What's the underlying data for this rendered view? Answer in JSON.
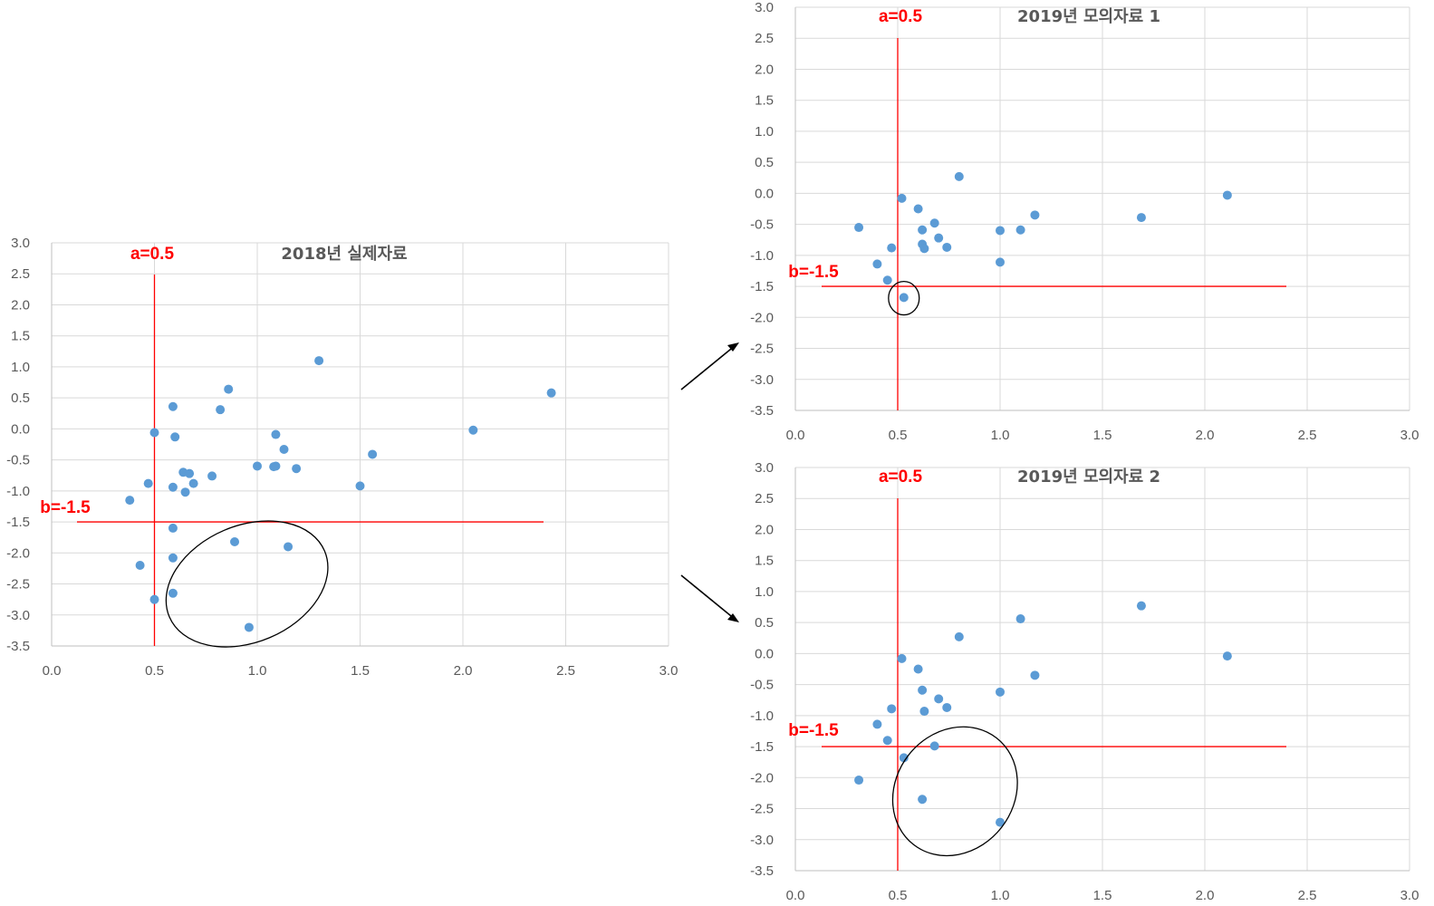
{
  "chart_data": [
    {
      "type": "scatter",
      "title": "2018년 실제자료",
      "xlim": [
        0.0,
        3.0
      ],
      "ylim": [
        -3.5,
        3.0
      ],
      "x_ticks": [
        "0.0",
        "0.5",
        "1.0",
        "1.5",
        "2.0",
        "2.5",
        "3.0"
      ],
      "y_ticks": [
        "3.0",
        "2.5",
        "2.0",
        "1.5",
        "1.0",
        "0.5",
        "0.0",
        "-0.5",
        "-1.0",
        "-1.5",
        "-2.0",
        "-2.5",
        "-3.0",
        "-3.5"
      ],
      "grid": true,
      "reference_lines": [
        {
          "orientation": "vertical",
          "value": 0.5,
          "label": "a=0.5"
        },
        {
          "orientation": "horizontal",
          "value": -1.5,
          "label": "b=-1.5"
        }
      ],
      "points": [
        {
          "x": 0.38,
          "y": -1.15
        },
        {
          "x": 0.43,
          "y": -2.2
        },
        {
          "x": 0.47,
          "y": -0.88
        },
        {
          "x": 0.5,
          "y": -0.06
        },
        {
          "x": 0.5,
          "y": -2.75
        },
        {
          "x": 0.59,
          "y": 0.36
        },
        {
          "x": 0.59,
          "y": -0.94
        },
        {
          "x": 0.59,
          "y": -1.6
        },
        {
          "x": 0.59,
          "y": -2.08
        },
        {
          "x": 0.59,
          "y": -2.65
        },
        {
          "x": 0.6,
          "y": -0.13
        },
        {
          "x": 0.64,
          "y": -0.7
        },
        {
          "x": 0.65,
          "y": -1.02
        },
        {
          "x": 0.67,
          "y": -0.72
        },
        {
          "x": 0.69,
          "y": -0.88
        },
        {
          "x": 0.78,
          "y": -0.76
        },
        {
          "x": 0.82,
          "y": 0.31
        },
        {
          "x": 0.86,
          "y": 0.64
        },
        {
          "x": 0.89,
          "y": -1.82
        },
        {
          "x": 0.96,
          "y": -3.2
        },
        {
          "x": 1.0,
          "y": -0.6
        },
        {
          "x": 1.08,
          "y": -0.61
        },
        {
          "x": 1.09,
          "y": -0.09
        },
        {
          "x": 1.09,
          "y": -0.6
        },
        {
          "x": 1.13,
          "y": -0.33
        },
        {
          "x": 1.15,
          "y": -1.9
        },
        {
          "x": 1.19,
          "y": -0.64
        },
        {
          "x": 1.3,
          "y": 1.1
        },
        {
          "x": 1.5,
          "y": -0.92
        },
        {
          "x": 1.56,
          "y": -0.41
        },
        {
          "x": 2.05,
          "y": -0.02
        },
        {
          "x": 2.43,
          "y": 0.58
        }
      ],
      "highlight_ellipse": {
        "cx": 0.95,
        "cy": -2.5,
        "rx": 0.41,
        "ry": 0.94,
        "rotation": -23
      }
    },
    {
      "type": "scatter",
      "title": "2019년 모의자료 1",
      "xlim": [
        0.0,
        3.0
      ],
      "ylim": [
        -3.5,
        3.0
      ],
      "x_ticks": [
        "0.0",
        "0.5",
        "1.0",
        "1.5",
        "2.0",
        "2.5",
        "3.0"
      ],
      "y_ticks": [
        "3.0",
        "2.5",
        "2.0",
        "1.5",
        "1.0",
        "0.5",
        "0.0",
        "-0.5",
        "-1.0",
        "-1.5",
        "-2.0",
        "-2.5",
        "-3.0",
        "-3.5"
      ],
      "grid": true,
      "reference_lines": [
        {
          "orientation": "vertical",
          "value": 0.5,
          "label": "a=0.5"
        },
        {
          "orientation": "horizontal",
          "value": -1.5,
          "label": "b=-1.5"
        }
      ],
      "points": [
        {
          "x": 0.31,
          "y": -0.55
        },
        {
          "x": 0.4,
          "y": -1.14
        },
        {
          "x": 0.45,
          "y": -1.4
        },
        {
          "x": 0.47,
          "y": -0.88
        },
        {
          "x": 0.52,
          "y": -0.08
        },
        {
          "x": 0.53,
          "y": -1.68
        },
        {
          "x": 0.6,
          "y": -0.25
        },
        {
          "x": 0.62,
          "y": -0.59
        },
        {
          "x": 0.62,
          "y": -0.82
        },
        {
          "x": 0.63,
          "y": -0.89
        },
        {
          "x": 0.68,
          "y": -0.48
        },
        {
          "x": 0.7,
          "y": -0.72
        },
        {
          "x": 0.74,
          "y": -0.87
        },
        {
          "x": 0.8,
          "y": 0.27
        },
        {
          "x": 1.0,
          "y": -0.6
        },
        {
          "x": 1.0,
          "y": -1.11
        },
        {
          "x": 1.1,
          "y": -0.59
        },
        {
          "x": 1.17,
          "y": -0.35
        },
        {
          "x": 1.69,
          "y": -0.39
        },
        {
          "x": 2.11,
          "y": -0.03
        }
      ],
      "highlight_ellipse": {
        "cx": 0.53,
        "cy": -1.69,
        "rx": 0.075,
        "ry": 0.27,
        "rotation": 0
      }
    },
    {
      "type": "scatter",
      "title": "2019년 모의자료 2",
      "xlim": [
        0.0,
        3.0
      ],
      "ylim": [
        -3.5,
        3.0
      ],
      "x_ticks": [
        "0.0",
        "0.5",
        "1.0",
        "1.5",
        "2.0",
        "2.5",
        "3.0"
      ],
      "y_ticks": [
        "3.0",
        "2.5",
        "2.0",
        "1.5",
        "1.0",
        "0.5",
        "0.0",
        "-0.5",
        "-1.0",
        "-1.5",
        "-2.0",
        "-2.5",
        "-3.0",
        "-3.5"
      ],
      "grid": true,
      "reference_lines": [
        {
          "orientation": "vertical",
          "value": 0.5,
          "label": "a=0.5"
        },
        {
          "orientation": "horizontal",
          "value": -1.5,
          "label": "b=-1.5"
        }
      ],
      "points": [
        {
          "x": 0.31,
          "y": -2.04
        },
        {
          "x": 0.4,
          "y": -1.14
        },
        {
          "x": 0.45,
          "y": -1.4
        },
        {
          "x": 0.47,
          "y": -0.89
        },
        {
          "x": 0.52,
          "y": -0.08
        },
        {
          "x": 0.53,
          "y": -1.68
        },
        {
          "x": 0.6,
          "y": -0.25
        },
        {
          "x": 0.62,
          "y": -0.59
        },
        {
          "x": 0.62,
          "y": -2.35
        },
        {
          "x": 0.63,
          "y": -0.93
        },
        {
          "x": 0.68,
          "y": -1.49
        },
        {
          "x": 0.7,
          "y": -0.73
        },
        {
          "x": 0.74,
          "y": -0.87
        },
        {
          "x": 0.8,
          "y": 0.27
        },
        {
          "x": 1.0,
          "y": -0.62
        },
        {
          "x": 1.0,
          "y": -2.72
        },
        {
          "x": 1.1,
          "y": 0.56
        },
        {
          "x": 1.17,
          "y": -0.35
        },
        {
          "x": 1.69,
          "y": 0.77
        },
        {
          "x": 2.11,
          "y": -0.04
        }
      ],
      "highlight_ellipse": {
        "cx": 0.78,
        "cy": -2.22,
        "rx": 0.33,
        "ry": 0.95,
        "rotation": -52
      }
    }
  ]
}
